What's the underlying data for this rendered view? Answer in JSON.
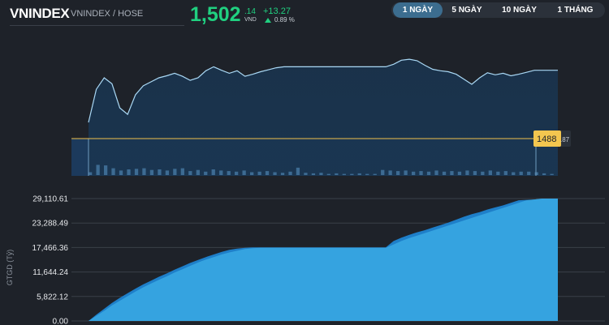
{
  "header": {
    "index_name": "VNINDEX",
    "exchange": "VNINDEX / HOSE",
    "price_int": "1,502",
    "price_dec": ".14",
    "price_unit": "VND",
    "change": "+13.27",
    "change_pct": "0.89 %"
  },
  "tabs": [
    {
      "label": "1 NGÀY",
      "active": true
    },
    {
      "label": "5 NGÀY",
      "active": false
    },
    {
      "label": "10 NGÀY",
      "active": false
    },
    {
      "label": "1 THÁNG",
      "active": false
    }
  ],
  "colors": {
    "accent_green": "#20d080",
    "price_line": "#a9d8f5",
    "reference_line": "#f0c04a",
    "volume_bar": "#4a7ea8",
    "area_light": "#35a3e0",
    "area_dark": "#1e7fc9"
  },
  "chart_data": [
    {
      "type": "line",
      "reference_price": {
        "int": "1488",
        "dec": ".87",
        "value": 1488.87
      },
      "series": [
        {
          "values": [
            1488.9,
            1495.5,
            1497.8,
            1496.6,
            1491.8,
            1490.5,
            1494.4,
            1496.2,
            1497.0,
            1497.8,
            1498.2,
            1498.7,
            1498.1,
            1497.3,
            1497.8,
            1499.2,
            1500.0,
            1499.3,
            1498.7,
            1499.2,
            1498.1,
            1498.5,
            1499.0,
            1499.4,
            1499.8,
            1500.0,
            1500.0,
            1500.0,
            1500.0,
            1500.0,
            1500.0,
            1500.0,
            1500.0,
            1500.0,
            1500.0,
            1500.0,
            1500.0,
            1500.0,
            1500.0,
            1500.5,
            1501.3,
            1501.5,
            1501.2,
            1500.3,
            1499.5,
            1499.2,
            1499.0,
            1498.5,
            1497.5,
            1496.5,
            1497.8,
            1498.8,
            1498.4,
            1498.7,
            1498.2,
            1498.5,
            1498.9,
            1499.3,
            1499.3,
            1499.3,
            1499.3
          ]
        }
      ],
      "volume": [
        0.25,
        0.9,
        0.85,
        0.6,
        0.4,
        0.5,
        0.55,
        0.6,
        0.45,
        0.5,
        0.4,
        0.55,
        0.6,
        0.35,
        0.45,
        0.3,
        0.5,
        0.4,
        0.35,
        0.3,
        0.4,
        0.25,
        0.3,
        0.35,
        0.25,
        0.2,
        0.3,
        0.65,
        0.2,
        0.15,
        0.2,
        0.1,
        0.15,
        0.1,
        0.1,
        0.15,
        0.1,
        0.1,
        0.45,
        0.4,
        0.35,
        0.4,
        0.3,
        0.35,
        0.3,
        0.4,
        0.3,
        0.35,
        0.3,
        0.4,
        0.35,
        0.3,
        0.4,
        0.3,
        0.35,
        0.25,
        0.3,
        0.3,
        0.25,
        0.15,
        0.1
      ]
    },
    {
      "type": "area",
      "ylabel": "GTGD (Tỷ)",
      "ylim": [
        0,
        29110.61
      ],
      "y_ticks": [
        "29,110.61",
        "23,288.49",
        "17,466.36",
        "11,644.24",
        "5,822.12",
        "0.00"
      ],
      "series": [
        {
          "values": [
            0,
            1500,
            2900,
            4300,
            5500,
            6600,
            7700,
            8700,
            9600,
            10500,
            11300,
            12200,
            13000,
            13800,
            14500,
            15200,
            15800,
            16400,
            16900,
            17200,
            17400,
            17500,
            17500,
            17500,
            17500,
            17500,
            17500,
            17500,
            17500,
            17500,
            17500,
            17500,
            17500,
            17500,
            17500,
            17500,
            17500,
            17500,
            17500,
            19000,
            19800,
            20500,
            21100,
            21600,
            22200,
            22800,
            23400,
            24100,
            24800,
            25400,
            25900,
            26500,
            27000,
            27500,
            28100,
            28700,
            28800,
            28900,
            29110.61,
            29110.61,
            29110.61
          ]
        },
        {
          "values": [
            0,
            1200,
            2400,
            3700,
            4800,
            5900,
            7000,
            8000,
            8900,
            9800,
            10600,
            11500,
            12300,
            13100,
            13900,
            14600,
            15200,
            15800,
            16300,
            16700,
            17100,
            17300,
            17400,
            17400,
            17400,
            17400,
            17400,
            17400,
            17400,
            17400,
            17400,
            17400,
            17400,
            17400,
            17400,
            17400,
            17400,
            17400,
            17400,
            18200,
            19000,
            19700,
            20300,
            20900,
            21500,
            22100,
            22700,
            23300,
            23900,
            24500,
            25100,
            25700,
            26300,
            26900,
            27500,
            28100,
            28700,
            28900,
            29110.61,
            29110.61,
            29110.61
          ]
        }
      ]
    }
  ]
}
